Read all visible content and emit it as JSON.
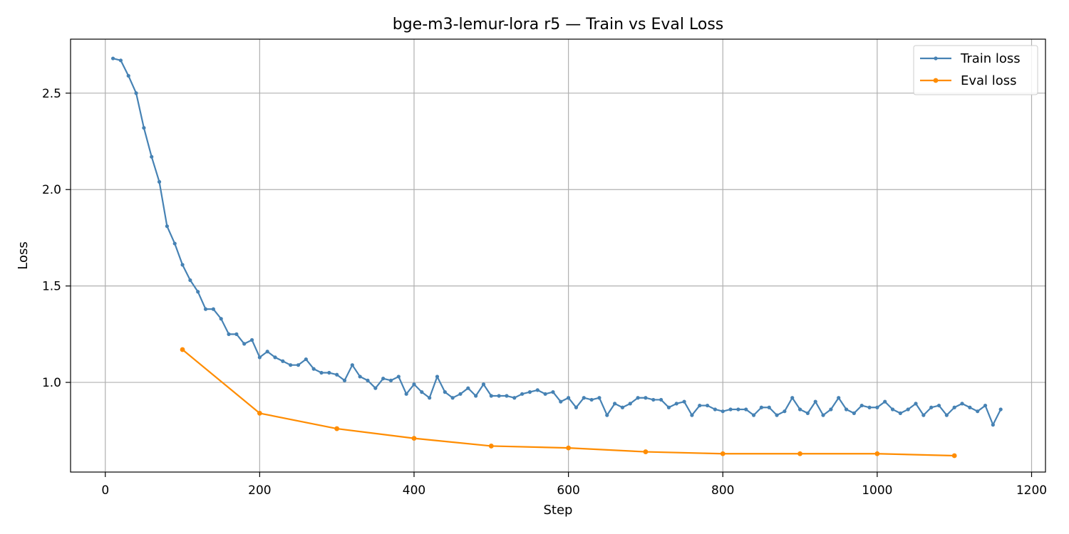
{
  "chart_data": {
    "type": "line",
    "title": "bge-m3-lemur-lora r5 — Train vs Eval Loss",
    "xlabel": "Step",
    "ylabel": "Loss",
    "xlim": [
      -45,
      1218
    ],
    "ylim": [
      0.535,
      2.78
    ],
    "xticks": [
      0,
      200,
      400,
      600,
      800,
      1000,
      1200
    ],
    "yticks": [
      1.0,
      1.5,
      2.0,
      2.5
    ],
    "xtick_labels": [
      "0",
      "200",
      "400",
      "600",
      "800",
      "1000",
      "1200"
    ],
    "ytick_labels": [
      "1.0",
      "1.5",
      "2.0",
      "2.5"
    ],
    "grid": true,
    "legend_position": "top-right",
    "series": [
      {
        "name": "Train loss",
        "color": "#4682b4",
        "marker_size": "small",
        "x": [
          10,
          20,
          30,
          40,
          50,
          60,
          70,
          80,
          90,
          100,
          110,
          120,
          130,
          140,
          150,
          160,
          170,
          180,
          190,
          200,
          210,
          220,
          230,
          240,
          250,
          260,
          270,
          280,
          290,
          300,
          310,
          320,
          330,
          340,
          350,
          360,
          370,
          380,
          390,
          400,
          410,
          420,
          430,
          440,
          450,
          460,
          470,
          480,
          490,
          500,
          510,
          520,
          530,
          540,
          550,
          560,
          570,
          580,
          590,
          600,
          610,
          620,
          630,
          640,
          650,
          660,
          670,
          680,
          690,
          700,
          710,
          720,
          730,
          740,
          750,
          760,
          770,
          780,
          790,
          800,
          810,
          820,
          830,
          840,
          850,
          860,
          870,
          880,
          890,
          900,
          910,
          920,
          930,
          940,
          950,
          960,
          970,
          980,
          990,
          1000,
          1010,
          1020,
          1030,
          1040,
          1050,
          1060,
          1070,
          1080,
          1090,
          1100,
          1110,
          1120,
          1130,
          1140,
          1150,
          1160
        ],
        "y": [
          2.68,
          2.67,
          2.59,
          2.5,
          2.32,
          2.17,
          2.04,
          1.81,
          1.72,
          1.61,
          1.53,
          1.47,
          1.38,
          1.38,
          1.33,
          1.25,
          1.25,
          1.2,
          1.22,
          1.13,
          1.16,
          1.13,
          1.11,
          1.09,
          1.09,
          1.12,
          1.07,
          1.05,
          1.05,
          1.04,
          1.01,
          1.09,
          1.03,
          1.01,
          0.97,
          1.02,
          1.01,
          1.03,
          0.94,
          0.99,
          0.95,
          0.92,
          1.03,
          0.95,
          0.92,
          0.94,
          0.97,
          0.93,
          0.99,
          0.93,
          0.93,
          0.93,
          0.92,
          0.94,
          0.95,
          0.96,
          0.94,
          0.95,
          0.9,
          0.92,
          0.87,
          0.92,
          0.91,
          0.92,
          0.83,
          0.89,
          0.87,
          0.89,
          0.92,
          0.92,
          0.91,
          0.91,
          0.87,
          0.89,
          0.9,
          0.83,
          0.88,
          0.88,
          0.86,
          0.85,
          0.86,
          0.86,
          0.86,
          0.83,
          0.87,
          0.87,
          0.83,
          0.85,
          0.92,
          0.86,
          0.84,
          0.9,
          0.83,
          0.86,
          0.92,
          0.86,
          0.84,
          0.88,
          0.87,
          0.87,
          0.9,
          0.86,
          0.84,
          0.86,
          0.89,
          0.83,
          0.87,
          0.88,
          0.83,
          0.87,
          0.89,
          0.87,
          0.85,
          0.88,
          0.78,
          0.86
        ]
      },
      {
        "name": "Eval loss",
        "color": "#ff8c00",
        "marker_size": "medium",
        "x": [
          100,
          200,
          300,
          400,
          500,
          600,
          700,
          800,
          900,
          1000,
          1100
        ],
        "y": [
          1.17,
          0.84,
          0.76,
          0.71,
          0.67,
          0.66,
          0.64,
          0.63,
          0.63,
          0.63,
          0.62
        ]
      }
    ]
  }
}
